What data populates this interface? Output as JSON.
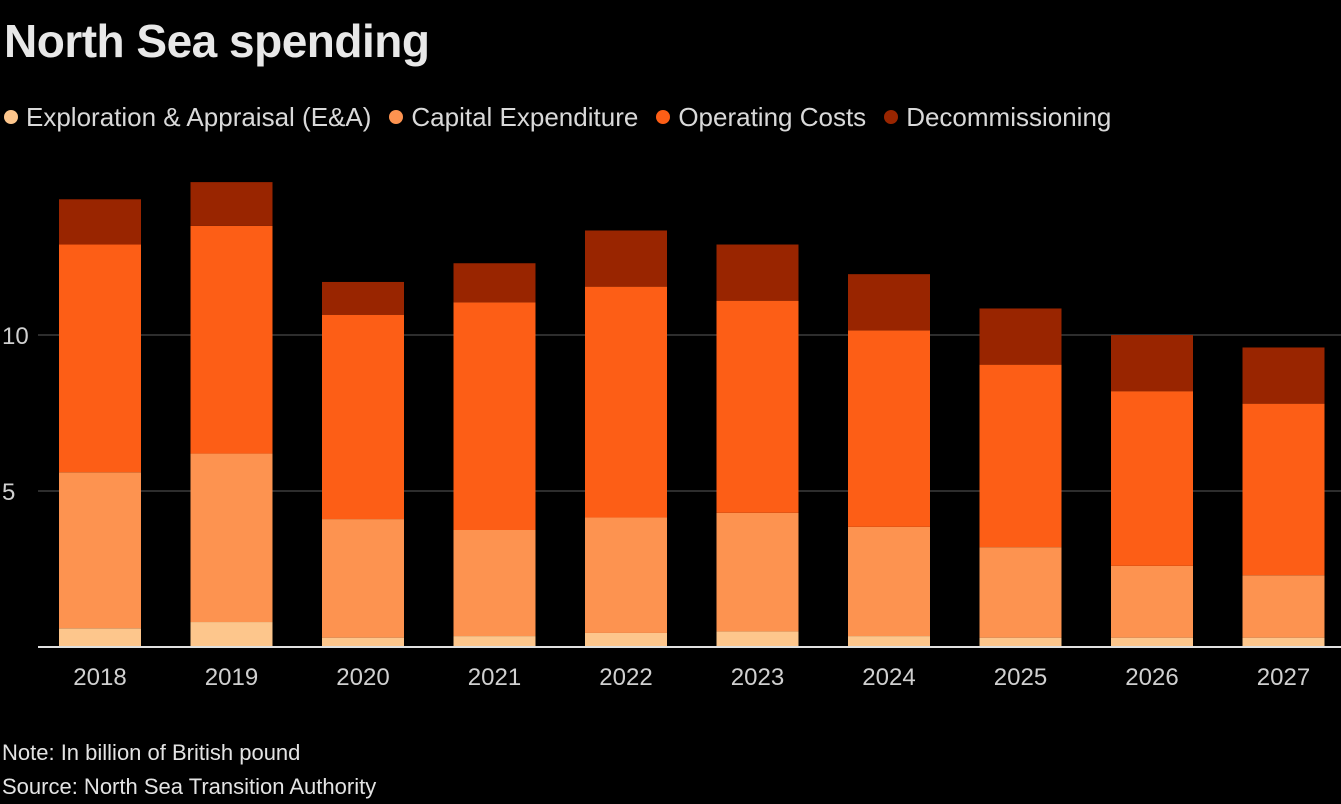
{
  "title": "North Sea spending",
  "note": "Note: In billion of British pound",
  "source": "Source: North Sea Transition Authority",
  "chart_data": {
    "type": "bar",
    "stacked": true,
    "title": "North Sea spending",
    "xlabel": "",
    "ylabel": "",
    "categories": [
      "2018",
      "2019",
      "2020",
      "2021",
      "2022",
      "2023",
      "2024",
      "2025",
      "2026",
      "2027"
    ],
    "yticks": [
      5,
      10
    ],
    "ylim": [
      0,
      15
    ],
    "grid": true,
    "legend_position": "top-left",
    "series": [
      {
        "name": "Exploration & Appraisal (E&A)",
        "color": "#fdc68c",
        "values": [
          0.6,
          0.8,
          0.3,
          0.35,
          0.45,
          0.5,
          0.35,
          0.3,
          0.3,
          0.3
        ]
      },
      {
        "name": "Capital Expenditure",
        "color": "#fd9350",
        "values": [
          5.0,
          5.4,
          3.8,
          3.4,
          3.7,
          3.8,
          3.5,
          2.9,
          2.3,
          2.0
        ]
      },
      {
        "name": "Operating Costs",
        "color": "#fd5e16",
        "values": [
          7.3,
          7.3,
          6.55,
          7.3,
          7.4,
          6.8,
          6.3,
          5.85,
          5.6,
          5.5
        ]
      },
      {
        "name": "Decommissioning",
        "color": "#992500",
        "values": [
          1.45,
          1.4,
          1.05,
          1.25,
          1.8,
          1.8,
          1.8,
          1.8,
          1.8,
          1.8
        ]
      }
    ]
  }
}
